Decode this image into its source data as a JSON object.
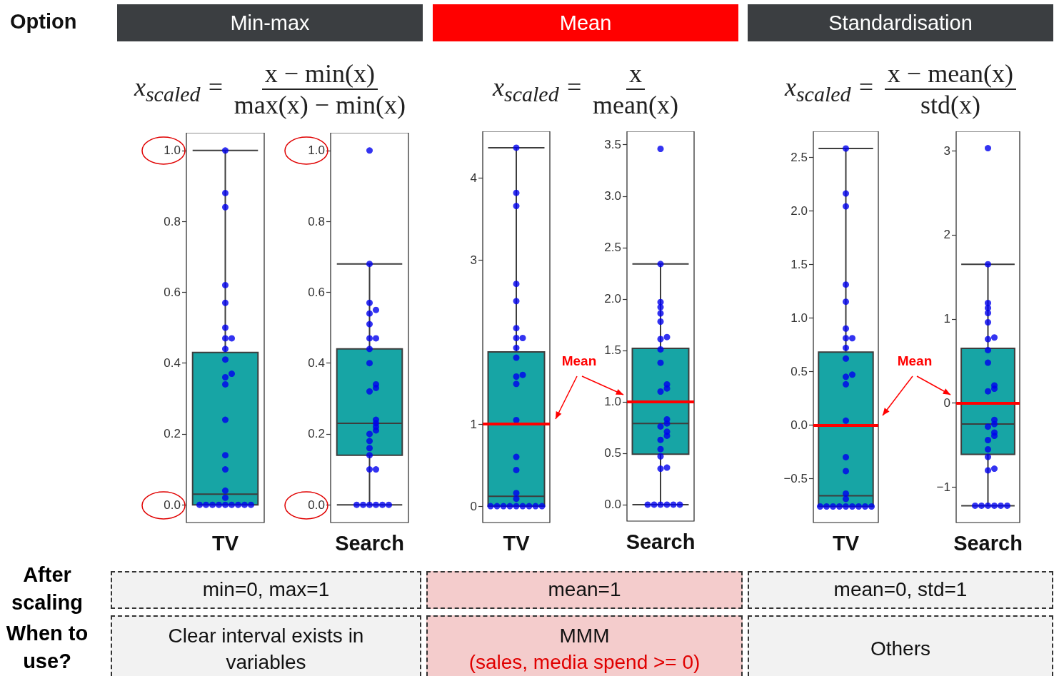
{
  "chart_data": [
    {
      "type": "other",
      "annotations": [
        "Option",
        "After scaling",
        "When to use?",
        "Min-max",
        "x$_{scaled}$ =",
        "x − min(x)",
        "max(x) − min(x)",
        "min=0, max=1",
        "Clear interval exists in variables",
        "Mean",
        "x$_{scaled}$ =",
        "x",
        "mean(x)",
        "mean=1",
        "MMM",
        "Standardisation",
        "x$_{scaled}$ =",
        "x − mean(x)",
        "std(x)",
        "mean=0, std=1",
        "Others",
        "(sales, media spend >= 0)"
      ]
    },
    {
      "type": "box",
      "categories": [
        "TV"
      ],
      "ylim": [
        -0.05,
        1.05
      ],
      "yticks": [
        {
          "value": 0,
          "label": "0.0"
        },
        0.2,
        0.4,
        0.6,
        0.8,
        {
          "value": 1,
          "label": "1.0"
        }
      ],
      "marker": "circle",
      "series": [
        {
          "type": "box",
          "color": "#17a5a5",
          "boxes": [
            {
              "low": 0,
              "q1": 0,
              "median": 0.03,
              "q3": 0.43,
              "high": 1.0
            }
          ]
        },
        {
          "type": "scatter",
          "color": "#0000ee",
          "x": [
            "TV",
            "TV",
            "TV",
            "TV",
            "TV",
            "TV",
            "TV",
            "TV",
            "TV",
            "TV",
            "TV",
            "TV",
            "TV",
            "TV",
            "TV",
            "TV",
            "TV",
            "TV",
            "TV",
            "TV",
            "TV",
            "TV",
            "TV",
            "TV",
            "TV",
            "TV",
            "TV"
          ],
          "values": [
            1.0,
            0.88,
            0.84,
            0.62,
            0.57,
            0.5,
            0.47,
            0.47,
            0.44,
            0.41,
            0.37,
            0.36,
            0.34,
            0.24,
            0.14,
            0.1,
            0.04,
            0.02,
            0,
            0,
            0,
            0,
            0,
            0,
            0,
            0,
            0
          ]
        }
      ]
    },
    {
      "type": "box",
      "categories": [
        "Search"
      ],
      "ylim": [
        -0.05,
        1.05
      ],
      "yticks": [
        {
          "value": 0,
          "label": "0.0"
        },
        0.2,
        0.4,
        0.6,
        0.8,
        {
          "value": 1,
          "label": "1.0"
        }
      ],
      "marker": "circle",
      "series": [
        {
          "type": "box",
          "color": "#17a5a5",
          "boxes": [
            {
              "low": 0,
              "q1": 0.14,
              "median": 0.23,
              "q3": 0.44,
              "high": 0.68
            }
          ]
        },
        {
          "type": "scatter",
          "color": "#0000ee",
          "x": [
            "Search",
            "Search",
            "Search",
            "Search",
            "Search",
            "Search",
            "Search",
            "Search",
            "Search",
            "Search",
            "Search",
            "Search",
            "Search",
            "Search",
            "Search",
            "Search",
            "Search",
            "Search",
            "Search",
            "Search",
            "Search",
            "Search",
            "Search",
            "Search",
            "Search",
            "Search",
            "Search",
            "Search",
            "Search"
          ],
          "values": [
            1.0,
            0.68,
            0.57,
            0.55,
            0.54,
            0.51,
            0.47,
            0.47,
            0.44,
            0.4,
            0.34,
            0.33,
            0.32,
            0.24,
            0.23,
            0.22,
            0.21,
            0.2,
            0.18,
            0.16,
            0.14,
            0.1,
            0.1,
            0,
            0,
            0,
            0,
            0,
            0
          ]
        }
      ]
    },
    {
      "type": "box",
      "categories": [
        "TV"
      ],
      "ylim": [
        -0.2,
        4.57
      ],
      "yticks": [
        0,
        1,
        3,
        4
      ],
      "marker": "circle",
      "ref_lines": [
        {
          "axis": "y",
          "value": 1,
          "label": "Mean",
          "color": "#ff0000"
        }
      ],
      "series": [
        {
          "type": "box",
          "color": "#17a5a5",
          "boxes": [
            {
              "low": 0,
              "q1": 0,
              "median": 0.12,
              "q3": 1.88,
              "high": 4.37
            }
          ]
        },
        {
          "type": "scatter",
          "color": "#0000ee",
          "x": [
            "TV",
            "TV",
            "TV",
            "TV",
            "TV",
            "TV",
            "TV",
            "TV",
            "TV",
            "TV",
            "TV",
            "TV",
            "TV",
            "TV",
            "TV",
            "TV",
            "TV",
            "TV",
            "TV",
            "TV",
            "TV",
            "TV",
            "TV",
            "TV",
            "TV",
            "TV",
            "TV"
          ],
          "values": [
            4.37,
            3.82,
            3.66,
            2.71,
            2.5,
            2.17,
            2.05,
            2.05,
            1.93,
            1.81,
            1.6,
            1.58,
            1.49,
            1.05,
            0.6,
            0.44,
            0.16,
            0.09,
            0,
            0,
            0,
            0,
            0,
            0,
            0,
            0,
            0
          ]
        }
      ]
    },
    {
      "type": "box",
      "categories": [
        "Search"
      ],
      "ylim": [
        -0.16,
        3.63
      ],
      "yticks": [
        {
          "value": 0,
          "label": "0.0"
        },
        0.5,
        {
          "value": 1,
          "label": "1.0"
        },
        1.5,
        {
          "value": 2,
          "label": "2.0"
        },
        2.5,
        {
          "value": 3,
          "label": "3.0"
        },
        3.5
      ],
      "marker": "circle",
      "ref_lines": [
        {
          "axis": "y",
          "value": 1,
          "color": "#ff0000"
        }
      ],
      "series": [
        {
          "type": "box",
          "color": "#17a5a5",
          "boxes": [
            {
              "low": 0,
              "q1": 0.49,
              "median": 0.79,
              "q3": 1.52,
              "high": 2.34
            }
          ]
        },
        {
          "type": "scatter",
          "color": "#0000ee",
          "x": [
            "Search",
            "Search",
            "Search",
            "Search",
            "Search",
            "Search",
            "Search",
            "Search",
            "Search",
            "Search",
            "Search",
            "Search",
            "Search",
            "Search",
            "Search",
            "Search",
            "Search",
            "Search",
            "Search",
            "Search",
            "Search",
            "Search",
            "Search",
            "Search",
            "Search",
            "Search",
            "Search",
            "Search",
            "Search"
          ],
          "values": [
            3.46,
            2.34,
            1.97,
            1.92,
            1.86,
            1.78,
            1.63,
            1.61,
            1.51,
            1.38,
            1.17,
            1.13,
            1.1,
            0.83,
            0.79,
            0.76,
            0.71,
            0.67,
            0.63,
            0.54,
            0.47,
            0.36,
            0.35,
            0,
            0,
            0,
            0,
            0,
            0
          ]
        }
      ]
    },
    {
      "type": "box",
      "categories": [
        "TV"
      ],
      "ylim": [
        -0.91,
        2.74
      ],
      "yticks": [
        {
          "value": -0.5,
          "label": "−0.5"
        },
        {
          "value": 0,
          "label": "0.0"
        },
        0.5,
        {
          "value": 1,
          "label": "1.0"
        },
        1.5,
        {
          "value": 2,
          "label": "2.0"
        },
        2.5
      ],
      "marker": "circle",
      "ref_lines": [
        {
          "axis": "y",
          "value": 0,
          "label": "Mean",
          "color": "#ff0000"
        }
      ],
      "series": [
        {
          "type": "box",
          "color": "#17a5a5",
          "boxes": [
            {
              "low": -0.76,
              "q1": -0.76,
              "median": -0.66,
              "q3": 0.68,
              "high": 2.58
            }
          ]
        },
        {
          "type": "scatter",
          "color": "#0000ee",
          "x": [
            "TV",
            "TV",
            "TV",
            "TV",
            "TV",
            "TV",
            "TV",
            "TV",
            "TV",
            "TV",
            "TV",
            "TV",
            "TV",
            "TV",
            "TV",
            "TV",
            "TV",
            "TV",
            "TV",
            "TV",
            "TV",
            "TV",
            "TV",
            "TV",
            "TV",
            "TV",
            "TV"
          ],
          "values": [
            2.58,
            2.16,
            2.04,
            1.31,
            1.15,
            0.9,
            0.81,
            0.81,
            0.72,
            0.62,
            0.47,
            0.45,
            0.38,
            0.04,
            -0.3,
            -0.43,
            -0.64,
            -0.69,
            -0.76,
            -0.76,
            -0.76,
            -0.76,
            -0.76,
            -0.76,
            -0.76,
            -0.76,
            -0.76
          ]
        }
      ]
    },
    {
      "type": "box",
      "categories": [
        "Search"
      ],
      "ylim": [
        -1.42,
        3.23
      ],
      "yticks": [
        {
          "value": -1,
          "label": "−1"
        },
        0,
        1,
        2,
        3
      ],
      "marker": "circle",
      "ref_lines": [
        {
          "axis": "y",
          "value": 0,
          "color": "#ff0000"
        }
      ],
      "series": [
        {
          "type": "box",
          "color": "#17a5a5",
          "boxes": [
            {
              "low": -1.22,
              "q1": -0.61,
              "median": -0.25,
              "q3": 0.65,
              "high": 1.65
            }
          ]
        },
        {
          "type": "scatter",
          "color": "#0000ee",
          "x": [
            "Search",
            "Search",
            "Search",
            "Search",
            "Search",
            "Search",
            "Search",
            "Search",
            "Search",
            "Search",
            "Search",
            "Search",
            "Search",
            "Search",
            "Search",
            "Search",
            "Search",
            "Search",
            "Search",
            "Search",
            "Search",
            "Search",
            "Search",
            "Search",
            "Search",
            "Search",
            "Search",
            "Search",
            "Search"
          ],
          "values": [
            3.03,
            1.65,
            1.19,
            1.13,
            1.07,
            0.96,
            0.78,
            0.76,
            0.63,
            0.48,
            0.21,
            0.17,
            0.14,
            -0.2,
            -0.25,
            -0.28,
            -0.35,
            -0.39,
            -0.44,
            -0.55,
            -0.64,
            -0.78,
            -0.8,
            -1.22,
            -1.22,
            -1.22,
            -1.22,
            -1.22,
            -1.22
          ]
        }
      ]
    }
  ]
}
